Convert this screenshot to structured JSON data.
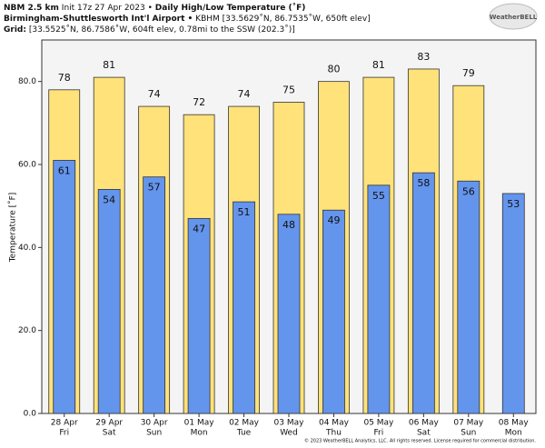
{
  "header": {
    "model": "NBM 2.5 km",
    "init": "Init 17z 27 Apr 2023 •",
    "title": "Daily High/Low Temperature (˚F)",
    "location": "Birmingham-Shuttlesworth Int'l Airport •",
    "station": "KBHM [33.5629˚N, 86.7535˚W, 650ft elev]",
    "grid_label": "Grid:",
    "grid": "[33.5525˚N, 86.7586˚W, 604ft elev, 0.78mi to the SSW (202.3˚)]",
    "logo": "WeatherBELL"
  },
  "footer": "© 2023 WeatherBELL Analytics, LLC. All rights reserved. License required for commercial distribution.",
  "chart_data": {
    "type": "bar",
    "y_label": "Temperature [˚F]",
    "categories": [
      "28 Apr",
      "29 Apr",
      "30 Apr",
      "01 May",
      "02 May",
      "03 May",
      "04 May",
      "05 May",
      "06 May",
      "07 May",
      "08 May"
    ],
    "weekdays": [
      "Fri",
      "Sat",
      "Sun",
      "Mon",
      "Tue",
      "Wed",
      "Thu",
      "Fri",
      "Sat",
      "Sun",
      "Mon"
    ],
    "series": [
      {
        "color": "#ffe27a",
        "values": [
          78,
          81,
          74,
          72,
          74,
          75,
          80,
          81,
          83,
          79,
          null
        ]
      },
      {
        "color": "#6495ed",
        "values": [
          61,
          54,
          57,
          47,
          51,
          48,
          49,
          55,
          58,
          56,
          53
        ]
      }
    ],
    "ylim": [
      0,
      90
    ],
    "yticks": [
      {
        "value": 0,
        "label": "0.0"
      },
      {
        "value": 20,
        "label": "20.0"
      },
      {
        "value": 40,
        "label": "40.0"
      },
      {
        "value": 60,
        "label": "60.0"
      },
      {
        "value": 80,
        "label": "80.0"
      }
    ]
  }
}
